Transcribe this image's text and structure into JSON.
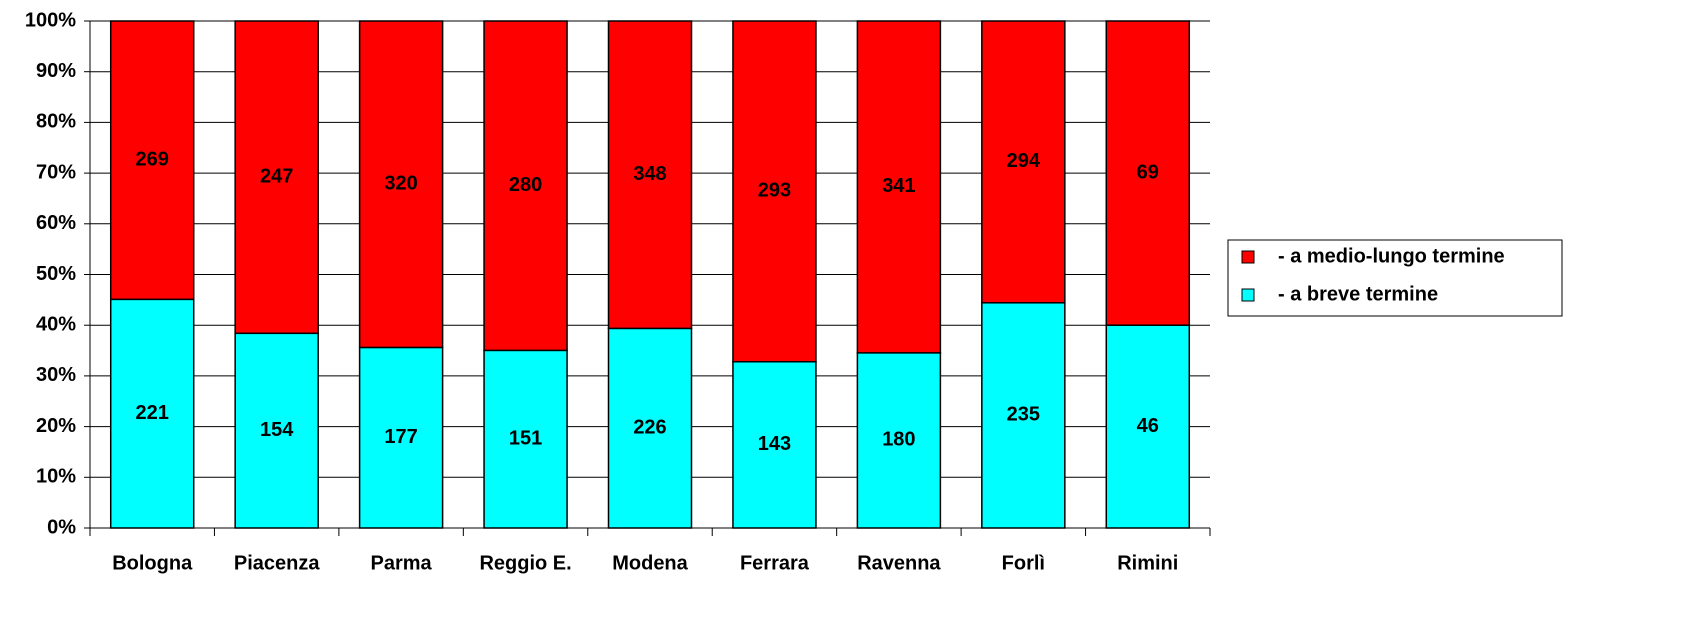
{
  "chart_data": {
    "type": "bar",
    "stacked": "percent",
    "categories": [
      "Bologna",
      "Piacenza",
      "Parma",
      "Reggio E.",
      "Modena",
      "Ferrara",
      "Ravenna",
      "Forlì",
      "Rimini"
    ],
    "series": [
      {
        "name": "- a breve termine",
        "color": "#00ffff",
        "values": [
          221,
          154,
          177,
          151,
          226,
          143,
          180,
          235,
          46
        ]
      },
      {
        "name": "- a medio-lungo termine",
        "color": "#ff0000",
        "values": [
          269,
          247,
          320,
          280,
          348,
          293,
          341,
          294,
          69
        ]
      }
    ],
    "ylim": [
      0,
      100
    ],
    "yticks": [
      {
        "value": 0,
        "label": "0%"
      },
      {
        "value": 10,
        "label": "10%"
      },
      {
        "value": 20,
        "label": "20%"
      },
      {
        "value": 30,
        "label": "30%"
      },
      {
        "value": 40,
        "label": "40%"
      },
      {
        "value": 50,
        "label": "50%"
      },
      {
        "value": 60,
        "label": "60%"
      },
      {
        "value": 70,
        "label": "70%"
      },
      {
        "value": 80,
        "label": "80%"
      },
      {
        "value": 90,
        "label": "90%"
      },
      {
        "value": 100,
        "label": "100%"
      }
    ],
    "grid": true,
    "legend": "right"
  }
}
